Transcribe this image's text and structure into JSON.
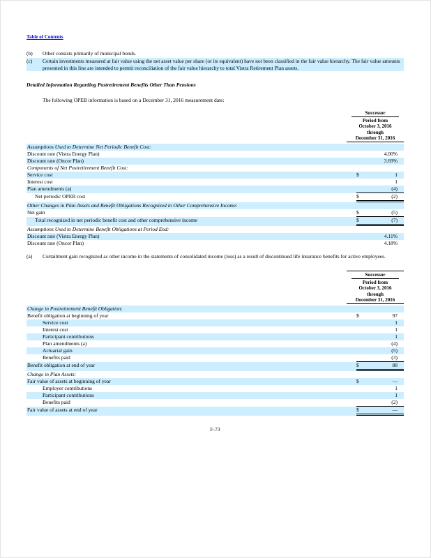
{
  "colors": {
    "highlight": "#cceeff",
    "link": "#0000cc"
  },
  "page": {
    "toc_link": "Table of Contents",
    "page_number": "F-73"
  },
  "top_footnotes": {
    "b": {
      "label": "(b)",
      "text": "Other consists primarily of municipal bonds."
    },
    "c": {
      "label": "(c)",
      "text": "Certain investments measured at fair value using the net asset value per share (or its equivalent) have not been classified in the fair value hierarchy. The fair value amounts presented in this line are intended to permit reconciliation of the fair value hierarchy to total Vistra Retirement Plan assets."
    }
  },
  "section": {
    "heading": "Detailed Information Regarding Postretirement Benefits Other Than Pensions",
    "intro": "The following OPEB information is based on a December 31, 2016 measurement date:"
  },
  "col_header": {
    "group": "Successor",
    "line1": "Period from",
    "line2": "October 3, 2016",
    "line3": "through",
    "line4": "December 31, 2016"
  },
  "footnote_a": {
    "label": "(a)",
    "text": "Curtailment gain recognized as other income in the statements of consolidated income (loss) as a result of discontinued life insurance benefits for active employees."
  },
  "table1": {
    "rows": [
      {
        "label": "Assumptions Used to Determine Net Periodic Benefit Cost:",
        "italic": true,
        "highlight": true
      },
      {
        "label": "Discount rate (Vistra Energy Plan)",
        "value": "4.00%"
      },
      {
        "label": "Discount rate (Oncor Plan)",
        "value": "3.69%",
        "highlight": true
      },
      {
        "label": "Components of Net Postretirement Benefit Cost:",
        "italic": true
      },
      {
        "label": "Service cost",
        "dollar": "$",
        "value": "1",
        "highlight": true
      },
      {
        "label": "Interest cost",
        "value": "1"
      },
      {
        "label": "Plan amendments (a)",
        "value": "(4)",
        "highlight": true,
        "underline": "single"
      },
      {
        "label": "Net periodic OPEB cost",
        "indent": 1,
        "dollar": "$",
        "value": "(2)",
        "underline": "double"
      },
      {
        "label": "Other Changes in Plan Assets and Benefit Obligations Recognized in Other Comprehensive Income:",
        "italic": true,
        "highlight": true
      },
      {
        "label": "Net gain",
        "dollar": "$",
        "value": "(5)",
        "underline": "single"
      },
      {
        "label": "Total recognized in net periodic benefit cost and other comprehensive income",
        "indent": 1,
        "dollar": "$",
        "value": "(7)",
        "highlight": true,
        "underline": "double"
      },
      {
        "label": "Assumptions Used to Determine Benefit Obligations at Period End:",
        "italic": true
      },
      {
        "label": "Discount rate (Vistra Energy Plan)",
        "value": "4.11%",
        "highlight": true
      },
      {
        "label": "Discount rate (Oncor Plan)",
        "value": "4.18%"
      }
    ]
  },
  "table2": {
    "rows": [
      {
        "label": "Change in Postretirement Benefit Obligation:",
        "italic": true,
        "highlight": true
      },
      {
        "label": "Benefit obligation at beginning of year",
        "dollar": "$",
        "value": "97"
      },
      {
        "label": "Service cost",
        "indent": 2,
        "value": "1",
        "highlight": true
      },
      {
        "label": "Interest cost",
        "indent": 2,
        "value": "1"
      },
      {
        "label": "Participant contributions",
        "indent": 2,
        "value": "1",
        "highlight": true
      },
      {
        "label": "Plan amendments (a)",
        "indent": 2,
        "value": "(4)"
      },
      {
        "label": "Actuarial gain",
        "indent": 2,
        "value": "(5)",
        "highlight": true
      },
      {
        "label": "Benefits paid",
        "indent": 2,
        "value": "(3)",
        "underline": "single"
      },
      {
        "label": "Benefit obligation at end of year",
        "dollar": "$",
        "value": "88",
        "highlight": true,
        "underline": "double"
      },
      {
        "label": "Change in Plan Assets:",
        "italic": true
      },
      {
        "label": "Fair value of assets at beginning of year",
        "dollar": "$",
        "value": "—",
        "highlight": true
      },
      {
        "label": "Employer contributions",
        "indent": 2,
        "value": "1"
      },
      {
        "label": "Participant contributions",
        "indent": 2,
        "value": "1",
        "highlight": true
      },
      {
        "label": "Benefits paid",
        "indent": 2,
        "value": "(2)",
        "underline": "single"
      },
      {
        "label": "Fair value of assets at end of year",
        "dollar": "$",
        "value": "—",
        "highlight": true,
        "underline": "double"
      }
    ]
  }
}
